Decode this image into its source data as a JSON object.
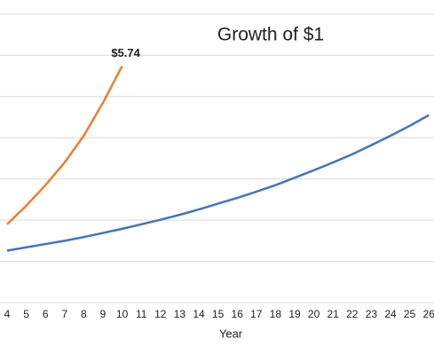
{
  "chart_data": {
    "type": "line",
    "title": "Growth of $1",
    "x_label": "Year",
    "categories": [
      "4",
      "5",
      "6",
      "7",
      "8",
      "9",
      "10",
      "11",
      "12",
      "13",
      "14",
      "15",
      "16",
      "17",
      "18",
      "19",
      "20",
      "21",
      "22",
      "23",
      "24",
      "25",
      "26"
    ],
    "series": [
      {
        "color": "#4472c4",
        "values": [
          1.26,
          1.34,
          1.42,
          1.5,
          1.59,
          1.69,
          1.79,
          1.9,
          2.01,
          2.13,
          2.26,
          2.4,
          2.54,
          2.69,
          2.85,
          3.03,
          3.21,
          3.4,
          3.6,
          3.82,
          4.05,
          4.29,
          4.55
        ]
      },
      {
        "color": "#ed7d31",
        "values": [
          1.9,
          2.35,
          2.85,
          3.4,
          4.05,
          4.85,
          5.74,
          null,
          null,
          null,
          null,
          null,
          null,
          null,
          null,
          null,
          null,
          null,
          null,
          null,
          null,
          null,
          null
        ],
        "value_labels": [
          null,
          null,
          null,
          null,
          null,
          null,
          "$5.74",
          null,
          null,
          null,
          null,
          null,
          null,
          null,
          null,
          null,
          null,
          null,
          null,
          null,
          null,
          null,
          null
        ]
      }
    ],
    "ylim": [
      0,
      7
    ],
    "yticks": [
      0,
      1,
      2,
      3,
      4,
      5,
      6,
      7
    ],
    "grid": true
  }
}
